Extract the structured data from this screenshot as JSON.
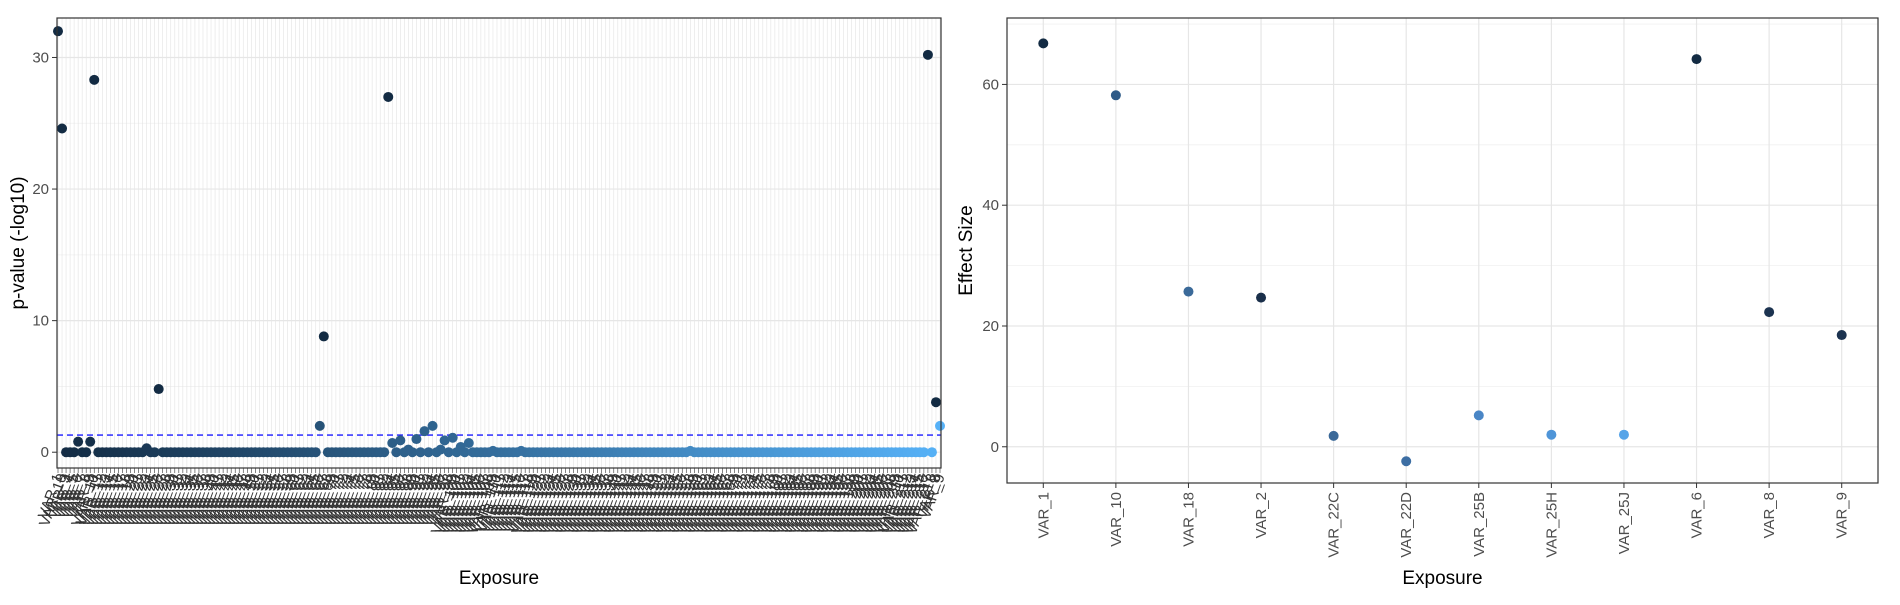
{
  "chart_data": [
    {
      "type": "scatter",
      "xlabel": "Exposure",
      "ylabel": "p-value (-log10)",
      "ylim": [
        -1.2,
        33
      ],
      "yticks": [
        0,
        10,
        20,
        30
      ],
      "n_categories": 220,
      "first_labels": [
        "VAR_1",
        "VAR_10"
      ],
      "last_labels": [
        "VAR_8",
        "VAR_9"
      ],
      "threshold_line": {
        "value": 1.3,
        "style": "dashed",
        "color": "#1a1aff"
      },
      "color_low": "#132b43",
      "color_high": "#56b1f7",
      "points": [
        {
          "i": 0,
          "y": 32.0
        },
        {
          "i": 1,
          "y": 24.6
        },
        {
          "i": 5,
          "y": 0.8
        },
        {
          "i": 8,
          "y": 0.8
        },
        {
          "i": 9,
          "y": 28.3
        },
        {
          "i": 22,
          "y": 0.3
        },
        {
          "i": 25,
          "y": 4.8
        },
        {
          "i": 65,
          "y": 2.0
        },
        {
          "i": 66,
          "y": 8.8
        },
        {
          "i": 82,
          "y": 27.0
        },
        {
          "i": 83,
          "y": 0.7
        },
        {
          "i": 85,
          "y": 0.9
        },
        {
          "i": 87,
          "y": 0.2
        },
        {
          "i": 89,
          "y": 1.0
        },
        {
          "i": 91,
          "y": 1.6
        },
        {
          "i": 93,
          "y": 2.0
        },
        {
          "i": 95,
          "y": 0.2
        },
        {
          "i": 96,
          "y": 0.9
        },
        {
          "i": 98,
          "y": 1.1
        },
        {
          "i": 100,
          "y": 0.4
        },
        {
          "i": 102,
          "y": 0.7
        },
        {
          "i": 108,
          "y": 0.1
        },
        {
          "i": 115,
          "y": 0.1
        },
        {
          "i": 157,
          "y": 0.1
        },
        {
          "i": 216,
          "y": 30.2
        },
        {
          "i": 217,
          "y": 0.0
        },
        {
          "i": 218,
          "y": 3.8
        },
        {
          "i": 219,
          "y": 2.0
        }
      ]
    },
    {
      "type": "scatter",
      "xlabel": "Exposure",
      "ylabel": "Effect Size",
      "ylim": [
        -6,
        71
      ],
      "yticks": [
        0,
        20,
        40,
        60
      ],
      "categories": [
        "VAR_1",
        "VAR_10",
        "VAR_18",
        "VAR_2",
        "VAR_22C",
        "VAR_22D",
        "VAR_25B",
        "VAR_25H",
        "VAR_25J",
        "VAR_6",
        "VAR_8",
        "VAR_9"
      ],
      "values": [
        66.8,
        58.2,
        25.7,
        24.7,
        1.8,
        -2.4,
        5.2,
        2.0,
        2.0,
        64.2,
        22.3,
        18.5
      ],
      "colors": [
        "#132b43",
        "#2e5a87",
        "#3b6a99",
        "#1a2f4a",
        "#3a6898",
        "#3d6ea3",
        "#4a86c6",
        "#4f95d8",
        "#56a4e8",
        "#132b43",
        "#1c3350",
        "#1c3350"
      ]
    }
  ]
}
